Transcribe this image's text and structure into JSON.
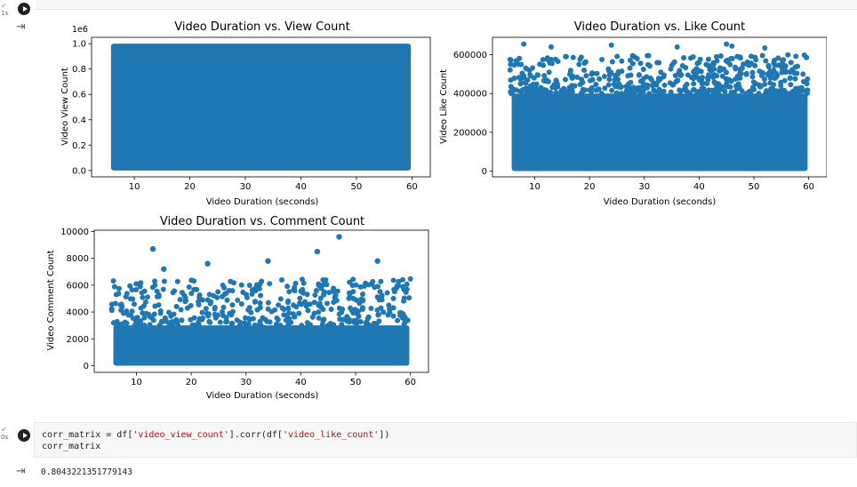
{
  "cell1": {
    "exec_mark": "✓",
    "exec_time": "1s",
    "charts": {
      "c1": {
        "title": "Video Duration vs. View Count",
        "xlabel": "Video Duration (seconds)",
        "ylabel": "Video View Count",
        "offset": "1e6"
      },
      "c2": {
        "title": "Video Duration vs. Like Count",
        "xlabel": "Video Duration (seconds)",
        "ylabel": "Video Like Count"
      },
      "c3": {
        "title": "Video Duration vs. Comment Count",
        "xlabel": "Video Duration (seconds)",
        "ylabel": "Video Comment Count"
      }
    }
  },
  "cell2": {
    "exec_mark": "✓",
    "exec_time": "0s",
    "code_line1": {
      "a": "corr_matrix = df[",
      "s1": "'video_view_count'",
      "b": "].corr(df[",
      "s2": "'video_like_count'",
      "c": "])"
    },
    "code_line2": "corr_matrix",
    "output": "0.8043221351779143"
  },
  "colors": {
    "marker": "#1f77b4"
  },
  "chart_data": [
    {
      "type": "scatter",
      "title": "Video Duration vs. View Count",
      "xlabel": "Video Duration (seconds)",
      "ylabel": "Video View Count",
      "xlim": [
        5,
        60
      ],
      "ylim": [
        0,
        1000000
      ],
      "xticks": [
        10,
        20,
        30,
        40,
        50,
        60
      ],
      "yticks": [
        0,
        200000,
        400000,
        600000,
        800000,
        1000000
      ],
      "ytick_labels": [
        "0.0",
        "0.2",
        "0.4",
        "0.6",
        "0.8",
        "1.0"
      ],
      "points_summary": "dense uniform fill across x 5-60, y 0-1,000,000"
    },
    {
      "type": "scatter",
      "title": "Video Duration vs. Like Count",
      "xlabel": "Video Duration (seconds)",
      "ylabel": "Video Like Count",
      "xlim": [
        5,
        60
      ],
      "ylim": [
        0,
        660000
      ],
      "xticks": [
        10,
        20,
        30,
        40,
        50,
        60
      ],
      "yticks": [
        0,
        200000,
        400000,
        600000
      ],
      "ytick_labels": [
        "0",
        "200000",
        "400000",
        "600000"
      ],
      "points_summary": "dense fill 0-400,000, sparser up to ~660,000"
    },
    {
      "type": "scatter",
      "title": "Video Duration vs. Comment Count",
      "xlabel": "Video Duration (seconds)",
      "ylabel": "Video Comment Count",
      "xlim": [
        5,
        60
      ],
      "ylim": [
        0,
        9600
      ],
      "xticks": [
        10,
        20,
        30,
        40,
        50,
        60
      ],
      "yticks": [
        0,
        2000,
        4000,
        6000,
        8000,
        10000
      ],
      "ytick_labels": [
        "0",
        "2000",
        "4000",
        "6000",
        "8000",
        "10000"
      ],
      "outliers": [
        [
          13,
          8700
        ],
        [
          47,
          9600
        ],
        [
          34,
          7800
        ],
        [
          43,
          8500
        ],
        [
          23,
          7600
        ],
        [
          54,
          7800
        ],
        [
          15,
          7200
        ]
      ],
      "points_summary": "dense fill 0-3,000, sparser up to ~6,800 with a few outliers"
    }
  ]
}
